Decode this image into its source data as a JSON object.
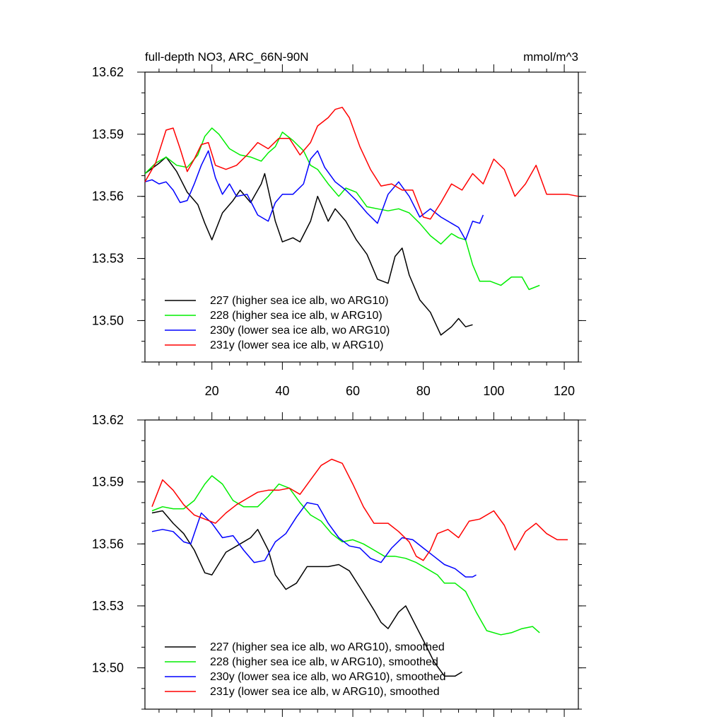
{
  "chart_data": [
    {
      "type": "line",
      "title": "full-depth NO3, ARC_66N-90N",
      "units": "mmol/m^3",
      "xlim": [
        1,
        124
      ],
      "ylim": [
        13.48,
        13.62
      ],
      "x_ticks": [
        20,
        40,
        60,
        80,
        100,
        120
      ],
      "x_tick_labels": [
        "20",
        "40",
        "60",
        "80",
        "100",
        "120"
      ],
      "y_ticks": [
        13.5,
        13.53,
        13.56,
        13.59,
        13.62
      ],
      "y_tick_labels": [
        "13.50",
        "13.53",
        "13.56",
        "13.59",
        "13.62"
      ],
      "legend_position": "bottom-left",
      "series": [
        {
          "name": "227 (higher sea ice alb, wo ARG10)",
          "color": "#000000",
          "x": [
            1,
            5,
            7,
            10,
            13,
            16,
            18,
            20,
            23,
            26,
            28,
            31,
            34,
            35,
            38,
            40,
            43,
            45,
            48,
            50,
            53,
            55,
            58,
            61,
            64,
            67,
            70,
            72,
            74,
            76,
            79,
            82,
            85,
            88,
            90,
            92,
            94
          ],
          "y": [
            13.571,
            13.576,
            13.579,
            13.572,
            13.562,
            13.556,
            13.547,
            13.539,
            13.552,
            13.558,
            13.563,
            13.557,
            13.566,
            13.571,
            13.548,
            13.538,
            13.54,
            13.538,
            13.548,
            13.56,
            13.548,
            13.554,
            13.548,
            13.539,
            13.532,
            13.52,
            13.518,
            13.531,
            13.535,
            13.522,
            13.51,
            13.504,
            13.493,
            13.497,
            13.501,
            13.497,
            13.498
          ]
        },
        {
          "name": "228 (higher sea ice alb, w ARG10)",
          "color": "#00ee00",
          "x": [
            1,
            4,
            7,
            10,
            13,
            16,
            18,
            20,
            22,
            25,
            28,
            31,
            34,
            36,
            38,
            40,
            43,
            46,
            48,
            50,
            53,
            56,
            58,
            61,
            64,
            67,
            70,
            73,
            76,
            79,
            82,
            85,
            88,
            90,
            92,
            94,
            96,
            99,
            102,
            105,
            108,
            110,
            113
          ],
          "y": [
            13.571,
            13.576,
            13.579,
            13.575,
            13.574,
            13.58,
            13.589,
            13.593,
            13.59,
            13.583,
            13.58,
            13.579,
            13.577,
            13.581,
            13.584,
            13.591,
            13.587,
            13.582,
            13.575,
            13.573,
            13.566,
            13.56,
            13.564,
            13.562,
            13.555,
            13.554,
            13.553,
            13.554,
            13.552,
            13.547,
            13.541,
            13.537,
            13.542,
            13.54,
            13.539,
            13.527,
            13.519,
            13.519,
            13.517,
            13.521,
            13.521,
            13.515,
            13.517
          ]
        },
        {
          "name": "230y (lower sea ice alb, wo ARG10)",
          "color": "#0000ff",
          "x": [
            1,
            3,
            5,
            7,
            9,
            11,
            13,
            15,
            17,
            19,
            21,
            23,
            25,
            27,
            30,
            33,
            36,
            38,
            40,
            43,
            46,
            48,
            50,
            52,
            55,
            58,
            61,
            64,
            67,
            70,
            73,
            76,
            79,
            82,
            85,
            88,
            90,
            92,
            94,
            96,
            97
          ],
          "y": [
            13.567,
            13.568,
            13.566,
            13.567,
            13.563,
            13.557,
            13.558,
            13.566,
            13.575,
            13.582,
            13.569,
            13.561,
            13.566,
            13.56,
            13.561,
            13.551,
            13.548,
            13.557,
            13.561,
            13.561,
            13.566,
            13.578,
            13.582,
            13.574,
            13.567,
            13.563,
            13.558,
            13.552,
            13.547,
            13.561,
            13.567,
            13.56,
            13.55,
            13.554,
            13.55,
            13.547,
            13.545,
            13.539,
            13.548,
            13.547,
            13.551
          ]
        },
        {
          "name": "231y (lower sea ice alb, w ARG10)",
          "color": "#ff0000",
          "x": [
            1,
            4,
            7,
            9,
            11,
            13,
            15,
            17,
            19,
            21,
            24,
            27,
            30,
            33,
            36,
            39,
            42,
            45,
            48,
            50,
            53,
            55,
            57,
            59,
            62,
            65,
            68,
            71,
            74,
            77,
            80,
            82,
            85,
            88,
            91,
            94,
            97,
            100,
            103,
            106,
            109,
            112,
            115,
            118,
            121,
            124
          ],
          "y": [
            13.567,
            13.576,
            13.592,
            13.593,
            13.583,
            13.572,
            13.578,
            13.585,
            13.586,
            13.575,
            13.573,
            13.575,
            13.58,
            13.586,
            13.583,
            13.588,
            13.588,
            13.58,
            13.586,
            13.594,
            13.598,
            13.602,
            13.603,
            13.598,
            13.584,
            13.573,
            13.565,
            13.566,
            13.563,
            13.563,
            13.55,
            13.549,
            13.557,
            13.566,
            13.563,
            13.571,
            13.566,
            13.578,
            13.573,
            13.56,
            13.566,
            13.575,
            13.561,
            13.561,
            13.561,
            13.56
          ]
        }
      ]
    },
    {
      "type": "line",
      "title": "",
      "xlim": [
        1,
        124
      ],
      "ylim": [
        13.48,
        13.62
      ],
      "x_ticks": [
        20,
        40,
        60,
        80,
        100,
        120
      ],
      "y_ticks": [
        13.5,
        13.53,
        13.56,
        13.59,
        13.62
      ],
      "y_tick_labels": [
        "13.50",
        "13.53",
        "13.56",
        "13.59",
        "13.62"
      ],
      "legend_position": "bottom-left",
      "series": [
        {
          "name": "227 (higher sea ice alb, wo ARG10), smoothed",
          "color": "#000000",
          "x": [
            3,
            6,
            9,
            12,
            15,
            18,
            20,
            24,
            28,
            31,
            33,
            36,
            38,
            41,
            44,
            47,
            50,
            53,
            56,
            59,
            62,
            66,
            68,
            70,
            73,
            75,
            78,
            81,
            83,
            86,
            89,
            91
          ],
          "y": [
            13.575,
            13.576,
            13.57,
            13.565,
            13.557,
            13.546,
            13.545,
            13.556,
            13.56,
            13.563,
            13.567,
            13.557,
            13.545,
            13.538,
            13.541,
            13.549,
            13.549,
            13.549,
            13.55,
            13.547,
            13.539,
            13.528,
            13.522,
            13.519,
            13.527,
            13.53,
            13.52,
            13.51,
            13.503,
            13.496,
            13.496,
            13.498
          ]
        },
        {
          "name": "228 (higher sea ice alb, w ARG10), smoothed",
          "color": "#00ee00",
          "x": [
            3,
            6,
            9,
            12,
            15,
            18,
            20,
            23,
            26,
            29,
            33,
            36,
            39,
            42,
            45,
            48,
            51,
            54,
            57,
            60,
            63,
            66,
            69,
            72,
            75,
            78,
            81,
            84,
            86,
            89,
            92,
            95,
            98,
            102,
            105,
            108,
            111,
            113
          ],
          "y": [
            13.576,
            13.578,
            13.577,
            13.577,
            13.581,
            13.589,
            13.593,
            13.589,
            13.581,
            13.578,
            13.578,
            13.583,
            13.589,
            13.587,
            13.58,
            13.574,
            13.571,
            13.565,
            13.561,
            13.562,
            13.56,
            13.557,
            13.554,
            13.554,
            13.553,
            13.551,
            13.548,
            13.545,
            13.541,
            13.541,
            13.537,
            13.527,
            13.518,
            13.516,
            13.517,
            13.519,
            13.52,
            13.517
          ]
        },
        {
          "name": "230y (lower sea ice alb, wo ARG10), smoothed",
          "color": "#0000ff",
          "x": [
            3,
            6,
            9,
            12,
            14,
            17,
            20,
            23,
            26,
            29,
            32,
            35,
            38,
            41,
            44,
            47,
            50,
            53,
            56,
            59,
            62,
            65,
            68,
            71,
            74,
            77,
            80,
            83,
            86,
            89,
            92,
            94,
            95
          ],
          "y": [
            13.566,
            13.567,
            13.566,
            13.561,
            13.56,
            13.575,
            13.57,
            13.563,
            13.564,
            13.557,
            13.551,
            13.552,
            13.561,
            13.565,
            13.573,
            13.58,
            13.579,
            13.57,
            13.563,
            13.559,
            13.558,
            13.553,
            13.551,
            13.558,
            13.563,
            13.562,
            13.558,
            13.554,
            13.55,
            13.548,
            13.544,
            13.544,
            13.545
          ]
        },
        {
          "name": "231y (lower sea ice alb, w ARG10), smoothed",
          "color": "#ff0000",
          "x": [
            3,
            6,
            9,
            12,
            15,
            18,
            21,
            24,
            27,
            30,
            33,
            36,
            39,
            42,
            45,
            48,
            51,
            54,
            57,
            60,
            63,
            66,
            70,
            73,
            76,
            78,
            80,
            82,
            84,
            87,
            90,
            93,
            96,
            100,
            103,
            106,
            109,
            112,
            115,
            118,
            121
          ],
          "y": [
            13.578,
            13.591,
            13.586,
            13.579,
            13.574,
            13.572,
            13.57,
            13.575,
            13.579,
            13.582,
            13.585,
            13.586,
            13.586,
            13.587,
            13.584,
            13.591,
            13.598,
            13.601,
            13.599,
            13.589,
            13.578,
            13.57,
            13.57,
            13.566,
            13.561,
            13.554,
            13.552,
            13.557,
            13.565,
            13.567,
            13.563,
            13.571,
            13.572,
            13.576,
            13.569,
            13.557,
            13.566,
            13.57,
            13.565,
            13.562,
            13.562
          ]
        }
      ]
    }
  ]
}
